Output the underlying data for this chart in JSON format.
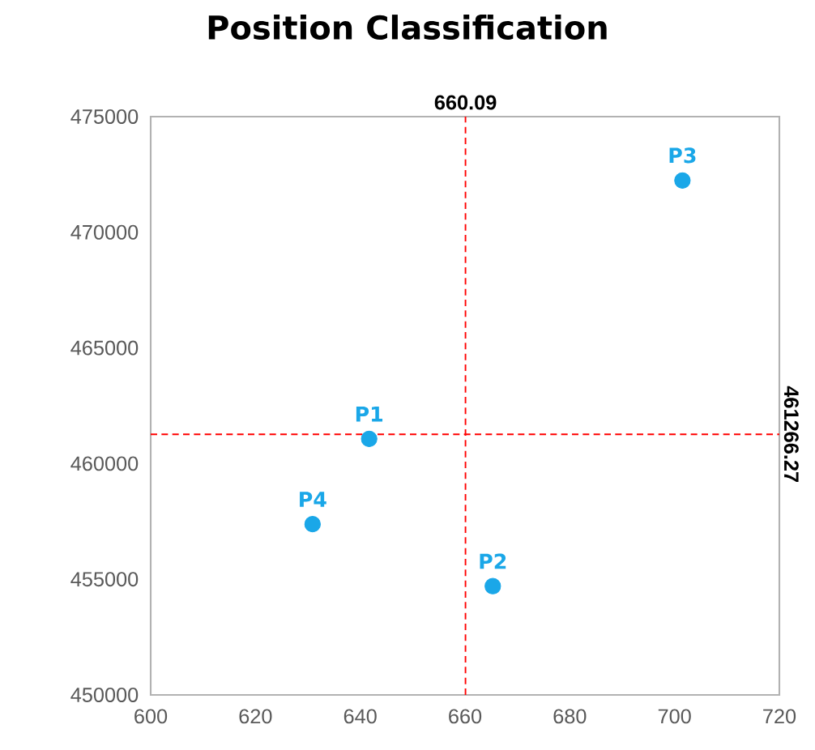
{
  "chart_data": {
    "type": "scatter",
    "title": "Position Classification",
    "x": [
      641.7,
      665.3,
      701.5,
      630.9
    ],
    "series": [
      {
        "color": "#1aa7e8",
        "values": [
          461070,
          454700,
          472240,
          457380
        ]
      }
    ],
    "marker": "circle",
    "xlim": [
      600,
      720
    ],
    "xticks": [
      600,
      620,
      640,
      660,
      680,
      700,
      720
    ],
    "ylim": [
      450000,
      475000
    ],
    "yticks": [
      450000,
      455000,
      460000,
      465000,
      470000,
      475000
    ],
    "grid": false,
    "annotations": [
      {
        "text": "P1",
        "x": 641.7,
        "y": 461070
      },
      {
        "text": "P2",
        "x": 665.3,
        "y": 454700
      },
      {
        "text": "P3",
        "x": 701.5,
        "y": 472240
      },
      {
        "text": "P4",
        "x": 630.9,
        "y": 457380
      }
    ],
    "ref_lines": [
      {
        "axis": "x",
        "value": 660.09,
        "label": "660.09",
        "color": "#ff0000",
        "line_style": "dashed"
      },
      {
        "axis": "y",
        "value": 461266.27,
        "label": "461266.27",
        "color": "#ff0000",
        "line_style": "dashed"
      }
    ]
  }
}
